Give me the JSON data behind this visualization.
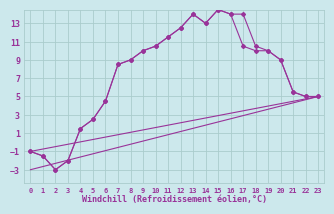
{
  "xlabel": "Windchill (Refroidissement éolien,°C)",
  "background_color": "#cce8ec",
  "grid_color": "#aacccc",
  "line_color": "#993399",
  "xlim": [
    -0.5,
    23.5
  ],
  "ylim": [
    -4.5,
    14.5
  ],
  "xticks": [
    0,
    1,
    2,
    3,
    4,
    5,
    6,
    7,
    8,
    9,
    10,
    11,
    12,
    13,
    14,
    15,
    16,
    17,
    18,
    19,
    20,
    21,
    22,
    23
  ],
  "yticks": [
    -3,
    -1,
    1,
    3,
    5,
    7,
    9,
    11,
    13
  ],
  "series1_x": [
    0,
    1,
    2,
    3,
    4,
    5,
    6,
    7,
    8,
    9,
    10,
    11,
    12,
    13,
    14,
    15,
    16,
    17,
    18,
    19,
    20,
    21,
    22,
    23
  ],
  "series1_y": [
    -1,
    -1.5,
    -3,
    -2,
    1.5,
    2.5,
    4.5,
    8.5,
    9,
    10,
    10.5,
    11.5,
    12.5,
    14,
    13,
    14.5,
    14,
    10.5,
    10,
    10,
    9,
    5.5,
    5,
    5
  ],
  "series2_x": [
    0,
    1,
    2,
    3,
    4,
    5,
    6,
    7,
    8,
    9,
    10,
    11,
    12,
    13,
    14,
    15,
    16,
    17,
    18,
    19,
    20,
    21,
    22,
    23
  ],
  "series2_y": [
    -1,
    -1.5,
    -3,
    -2,
    1.5,
    2.5,
    4.5,
    8.5,
    9,
    10,
    10.5,
    11.5,
    12.5,
    14,
    13,
    14.5,
    14,
    14,
    10.5,
    10,
    9,
    5.5,
    5,
    5
  ],
  "series3_x": [
    0,
    23
  ],
  "series3_y": [
    -1,
    5
  ],
  "series4_x": [
    0,
    23
  ],
  "series4_y": [
    -3,
    5
  ]
}
